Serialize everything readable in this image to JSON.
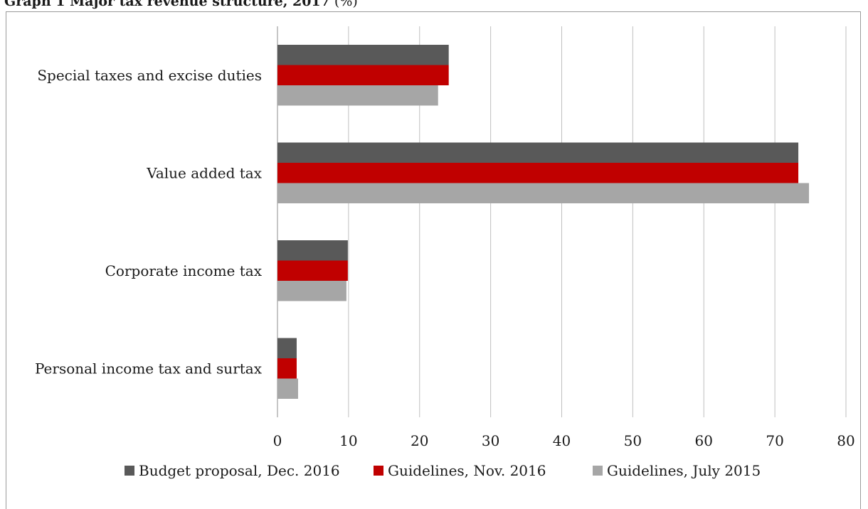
{
  "caption": {
    "bold": "Graph 1 Major tax revenue structure, 2017",
    "rest": " (%)"
  },
  "chart_data": {
    "type": "bar",
    "orientation": "horizontal",
    "title": "Graph 1 Major tax revenue structure, 2017 (%)",
    "categories": [
      "Special taxes and excise duties",
      "Value added tax",
      "Corporate income tax",
      "Personal income tax and surtax"
    ],
    "series": [
      {
        "name": "Budget proposal, Dec. 2016",
        "color": "#595959",
        "values": [
          24.1,
          73.3,
          9.9,
          2.7
        ]
      },
      {
        "name": "Guidelines, Nov. 2016",
        "color": "#c00000",
        "values": [
          24.1,
          73.3,
          9.9,
          2.7
        ]
      },
      {
        "name": "Guidelines, July 2015",
        "color": "#a6a6a6",
        "values": [
          22.6,
          74.8,
          9.7,
          2.9
        ]
      }
    ],
    "xlim": [
      0,
      80
    ],
    "xticks": [
      0,
      10,
      20,
      30,
      40,
      50,
      60,
      70,
      80
    ],
    "xtick_labels": [
      "0",
      "10",
      "20",
      "30",
      "40",
      "50",
      "60",
      "70",
      "80"
    ],
    "grid": "vertical",
    "legend_position": "bottom"
  }
}
